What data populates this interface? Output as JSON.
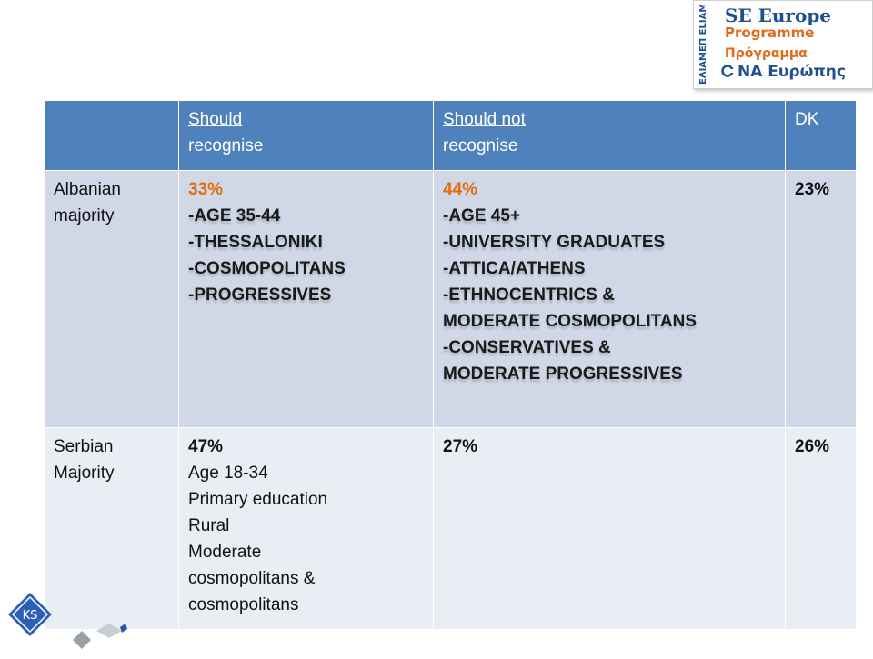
{
  "logo": {
    "vertical_text": "ΕΛΙΑΜΕΠ ELIAMEP",
    "line1": "SE Europe",
    "line2": "Programme",
    "line3": "Πρόγραμμα",
    "line4": "ΝΑ Ευρώπης"
  },
  "table": {
    "headers": {
      "corner": "",
      "should_u": "Should",
      "should_rest": "recognise",
      "should_not_u": "Should not",
      "should_not_rest": "recognise",
      "dk": "DK"
    },
    "rows": [
      {
        "label_1": "Albanian",
        "label_2": "majority",
        "should_pct": "33%",
        "should_items": [
          "-Age 35-44",
          "-Thessaloniki",
          "-Cosmopolitans",
          "-Progressives"
        ],
        "should_not_pct": "44%",
        "should_not_items": [
          "-Age 45+",
          "-University graduates",
          "-Attica/Athens",
          "-Ethnocentrics &",
          "moderate cosmopolitans",
          "-Conservatives &",
          "moderate progressives"
        ],
        "dk": "23%"
      },
      {
        "label_1": "Serbian",
        "label_2": "Majority",
        "should_pct": "47%",
        "should_items": [
          "Age 18-34",
          "Primary education",
          "Rural",
          "Moderate",
          "cosmopolitans &",
          "cosmopolitans"
        ],
        "should_not_pct": "27%",
        "dk": "26%"
      }
    ]
  },
  "badge": {
    "text": "KS"
  }
}
